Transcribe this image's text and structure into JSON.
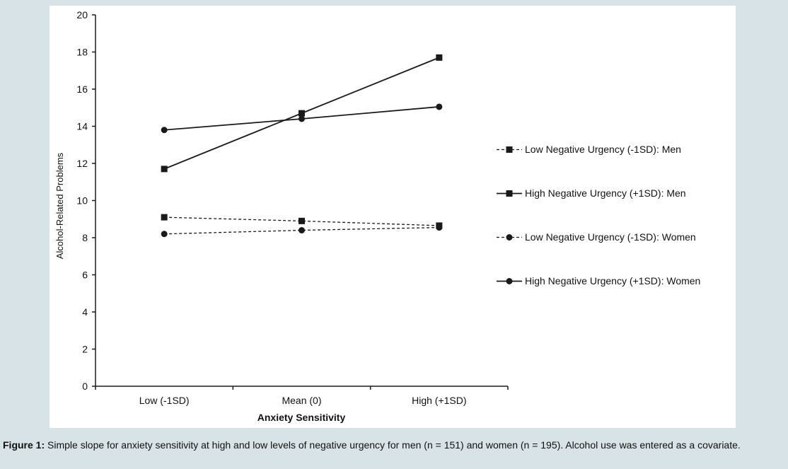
{
  "caption": {
    "lead": "Figure 1:",
    "text": " Simple slope for anxiety sensitivity at high and low levels of negative urgency for men (n = 151) and women (n = 195). Alcohol use was entered as a covariate."
  },
  "chart_data": {
    "type": "line",
    "title": "",
    "xlabel": "Anxiety Sensitivity",
    "ylabel": "Alcohol-Related Problems",
    "categories": [
      "Low (-1SD)",
      "Mean (0)",
      "High (+1SD)"
    ],
    "ylim": [
      0,
      20
    ],
    "yticks": [
      0,
      2,
      4,
      6,
      8,
      10,
      12,
      14,
      16,
      18,
      20
    ],
    "grid": false,
    "legend_position": "right",
    "series": [
      {
        "name": "Low Negative Urgency (-1SD): Men",
        "values": [
          9.1,
          8.9,
          8.65
        ],
        "line_style": "dashed",
        "marker": "square"
      },
      {
        "name": "High Negative Urgency (+1SD): Men",
        "values": [
          11.7,
          14.7,
          17.7
        ],
        "line_style": "solid",
        "marker": "square"
      },
      {
        "name": "Low Negative Urgency (-1SD): Women",
        "values": [
          8.2,
          8.4,
          8.55
        ],
        "line_style": "dashed",
        "marker": "circle"
      },
      {
        "name": "High Negative Urgency (+1SD): Women",
        "values": [
          13.8,
          14.4,
          15.05
        ],
        "line_style": "solid",
        "marker": "circle"
      }
    ],
    "colors": {
      "line": "#1a1a1a"
    }
  }
}
